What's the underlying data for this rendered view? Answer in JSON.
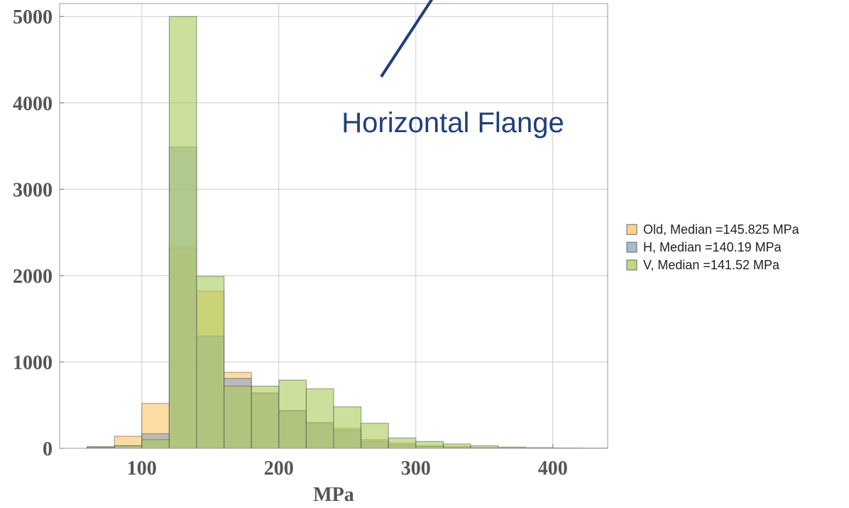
{
  "chart_data": {
    "type": "bar",
    "title": "",
    "xlabel": "MPa",
    "ylabel": "",
    "xlim": [
      40,
      440
    ],
    "ylim": [
      0,
      5150
    ],
    "bin_width": 20,
    "bins": [
      60,
      80,
      100,
      120,
      140,
      160,
      180,
      200,
      220,
      240,
      260,
      280,
      300,
      320,
      340,
      360,
      380,
      400,
      420
    ],
    "x_ticks": [
      100,
      200,
      300,
      400
    ],
    "y_ticks": [
      0,
      1000,
      2000,
      3000,
      4000,
      5000
    ],
    "grid": true,
    "legend_position": "right",
    "series": [
      {
        "name": "Old, Median =145.825 MPa",
        "color": "#fcc567",
        "values": [
          20,
          140,
          520,
          2320,
          1820,
          880,
          640,
          440,
          300,
          230,
          100,
          60,
          30,
          20,
          10,
          5,
          3,
          2,
          1
        ]
      },
      {
        "name": "H, Median =140.19 MPa",
        "color": "#8fa3c4",
        "values": [
          10,
          30,
          170,
          3490,
          1300,
          810,
          640,
          430,
          290,
          210,
          80,
          40,
          20,
          10,
          5,
          3,
          2,
          1,
          1
        ]
      },
      {
        "name": "V, Median =141.52 MPa",
        "color": "#a9cc5a",
        "values": [
          10,
          30,
          100,
          5000,
          1990,
          720,
          720,
          790,
          690,
          480,
          290,
          120,
          80,
          50,
          30,
          15,
          8,
          4,
          2
        ]
      }
    ],
    "annotation": {
      "text": "Horizontal Flange",
      "arrow_color": "#1f3f7a"
    }
  }
}
